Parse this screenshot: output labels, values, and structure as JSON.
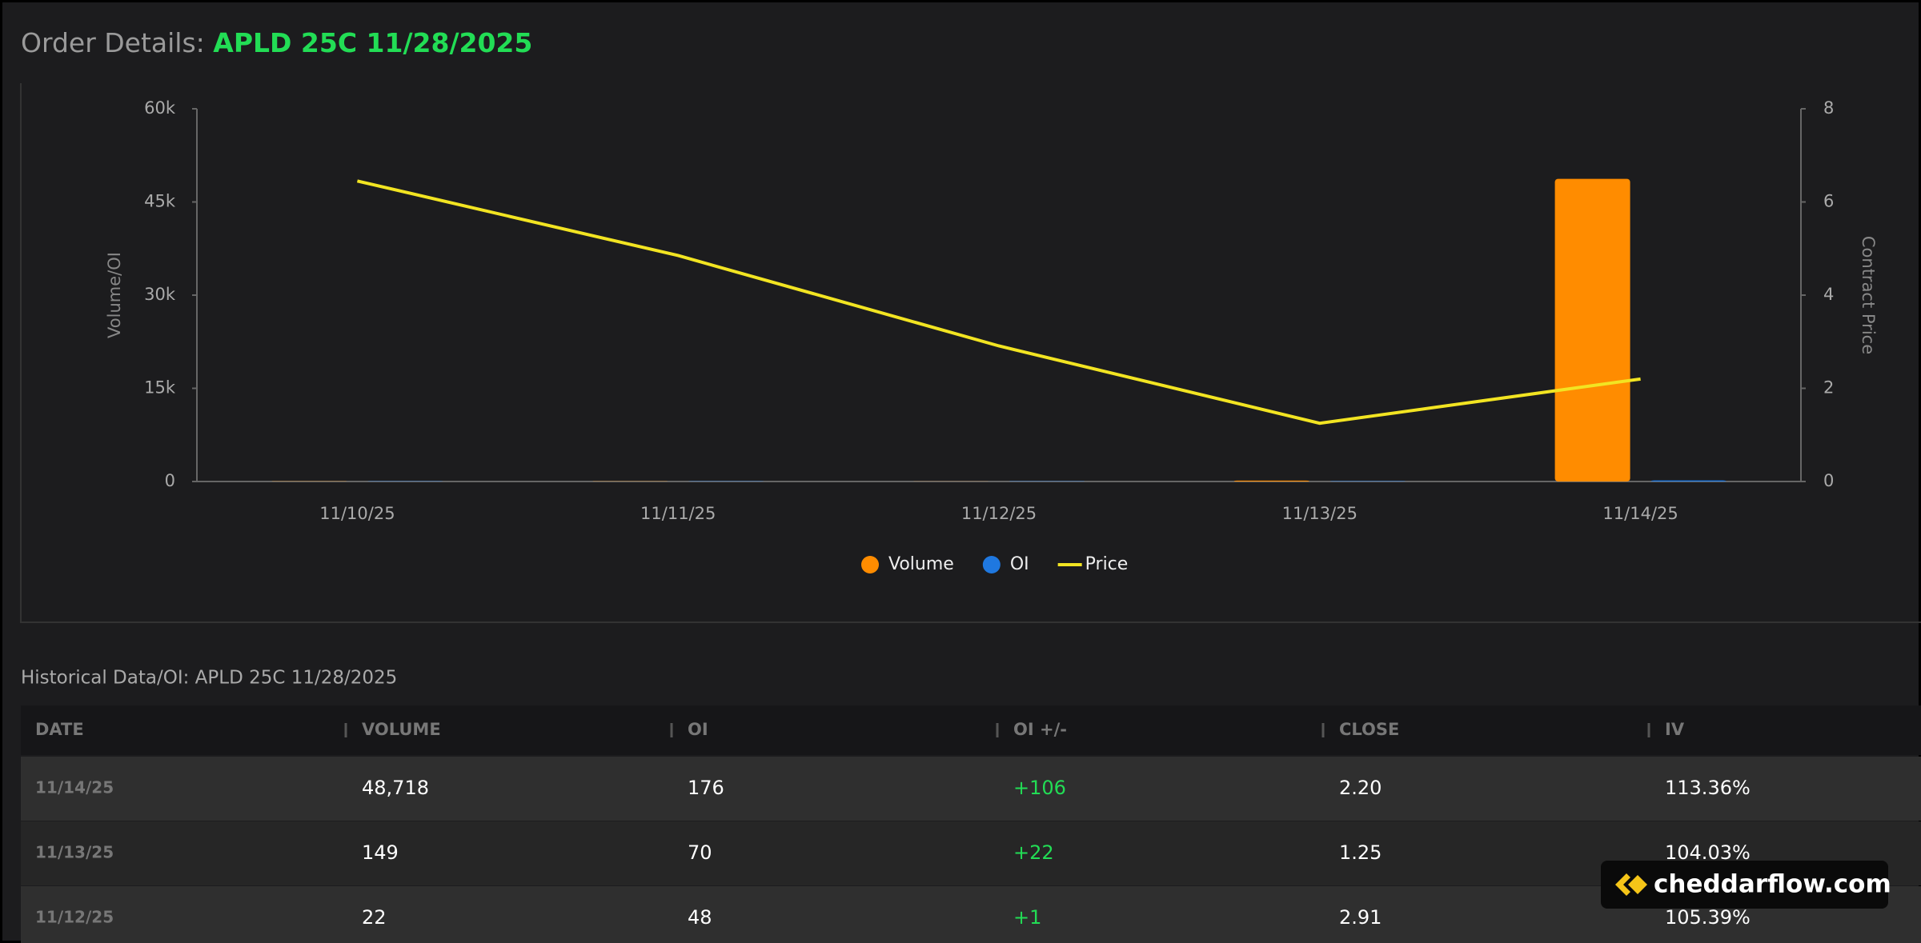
{
  "header": {
    "label": "Order Details:",
    "contract": "APLD 25C 11/28/2025"
  },
  "chart_data": {
    "type": "bar",
    "categories": [
      "11/10/25",
      "11/11/25",
      "11/12/25",
      "11/13/25",
      "11/14/25"
    ],
    "series": [
      {
        "name": "Volume",
        "color": "#ff8c00",
        "values": [
          40,
          30,
          22,
          149,
          48718
        ]
      },
      {
        "name": "OI",
        "color": "#1f78e0",
        "values": [
          45,
          47,
          48,
          70,
          176
        ]
      },
      {
        "name": "Price",
        "color": "#f2e422",
        "type": "line",
        "axis": "y2",
        "values": [
          6.45,
          4.85,
          2.91,
          1.25,
          2.2
        ]
      }
    ],
    "ylabel": "Volume/OI",
    "y2label": "Contract Price",
    "ylim": [
      0,
      60000
    ],
    "yticks": [
      0,
      {
        "value": 15000,
        "label": "15k"
      },
      {
        "value": 30000,
        "label": "30k"
      },
      {
        "value": 45000,
        "label": "45k"
      },
      {
        "value": 60000,
        "label": "60k"
      }
    ],
    "y2lim": [
      0,
      8
    ],
    "y2ticks": [
      0,
      2,
      4,
      6,
      8
    ],
    "grid": false,
    "legend": "bottom"
  },
  "table": {
    "title": "Historical Data/OI: APLD 25C 11/28/2025",
    "columns": [
      "DATE",
      "VOLUME",
      "OI",
      "OI +/-",
      "CLOSE",
      "IV"
    ],
    "rows": [
      [
        "11/14/25",
        "48,718",
        "176",
        "+106",
        "2.20",
        "113.36%"
      ],
      [
        "11/13/25",
        "149",
        "70",
        "+22",
        "1.25",
        "104.03%"
      ],
      [
        "11/12/25",
        "22",
        "48",
        "+1",
        "2.91",
        "105.39%"
      ]
    ]
  },
  "watermark": "cheddarflow.com"
}
